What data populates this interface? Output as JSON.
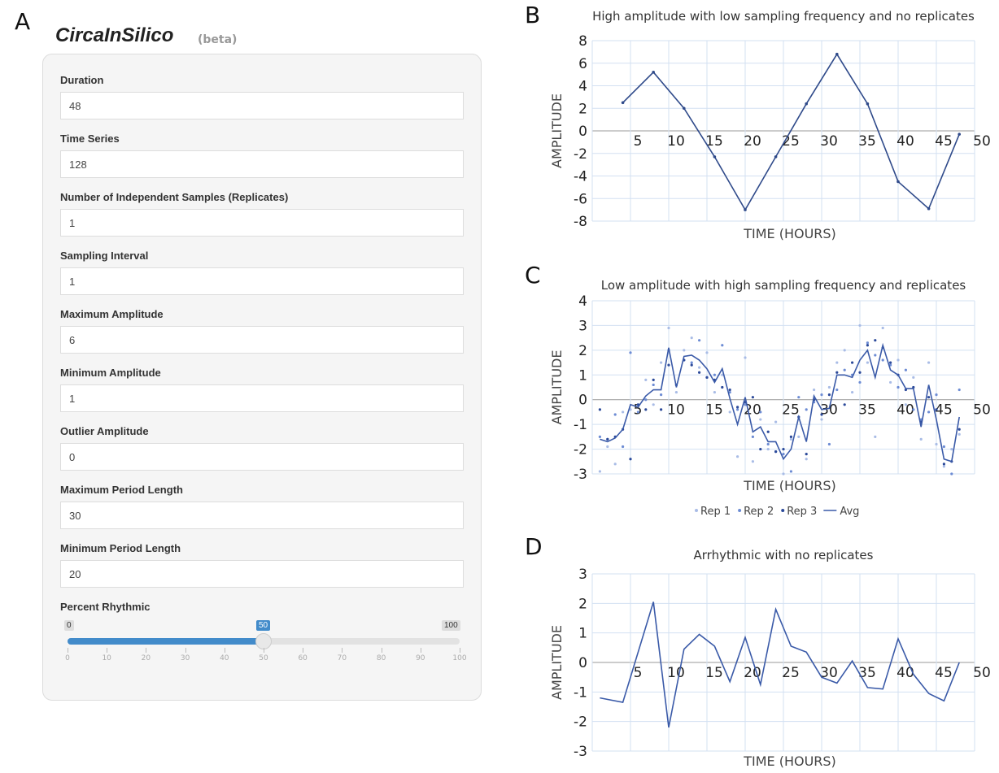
{
  "panel_labels": [
    "A",
    "B",
    "C",
    "D"
  ],
  "form": {
    "title": "CircaInSilico",
    "badge": "(beta)",
    "fields": [
      {
        "label": "Duration",
        "value": "48"
      },
      {
        "label": "Time Series",
        "value": "128"
      },
      {
        "label": "Number of Independent Samples (Replicates)",
        "value": "1"
      },
      {
        "label": "Sampling Interval",
        "value": "1"
      },
      {
        "label": "Maximum Amplitude",
        "value": "6"
      },
      {
        "label": "Minimum Amplitude",
        "value": "1"
      },
      {
        "label": "Outlier Amplitude",
        "value": "0"
      },
      {
        "label": "Maximum Period Length",
        "value": "30"
      },
      {
        "label": "Minimum Period Length",
        "value": "20"
      }
    ],
    "slider": {
      "label": "Percent Rhythmic",
      "min": 0,
      "max": 100,
      "value": 50,
      "ticks": [
        0,
        10,
        20,
        30,
        40,
        50,
        60,
        70,
        80,
        90,
        100
      ]
    }
  },
  "chart_data": [
    {
      "type": "line",
      "title": "High amplitude with low sampling frequency and no replicates",
      "x_label": "TIME (HOURS)",
      "y_label": "AMPLITUDE",
      "x": [
        4,
        8,
        12,
        16,
        20,
        24,
        28,
        32,
        36,
        40,
        44,
        48
      ],
      "series": [
        {
          "name": "Amplitude",
          "color": "#2f4a8a",
          "markers": true,
          "line": true,
          "values": [
            2.5,
            5.2,
            2.0,
            -2.3,
            -7.0,
            -2.3,
            2.4,
            6.8,
            2.4,
            -4.5,
            -6.9,
            -0.3
          ]
        }
      ],
      "xlim": [
        0,
        50
      ],
      "xticks": [
        5,
        10,
        15,
        20,
        25,
        30,
        35,
        40,
        45,
        50
      ],
      "ylim": [
        -8,
        8
      ],
      "yticks": [
        -8,
        -6,
        -4,
        -2,
        0,
        2,
        4,
        6,
        8
      ],
      "grid": true,
      "legend": false
    },
    {
      "type": "line",
      "title": "Low amplitude with high sampling frequency and replicates",
      "x_label": "TIME (HOURS)",
      "y_label": "AMPLITUDE",
      "x": [
        1,
        2,
        3,
        4,
        5,
        6,
        7,
        8,
        9,
        10,
        11,
        12,
        13,
        14,
        15,
        16,
        17,
        18,
        19,
        20,
        21,
        22,
        23,
        24,
        25,
        26,
        27,
        28,
        29,
        30,
        31,
        32,
        33,
        34,
        35,
        36,
        37,
        38,
        39,
        40,
        41,
        42,
        43,
        44,
        45,
        46,
        47,
        48
      ],
      "series": [
        {
          "name": "Rep 1",
          "color": "#a9bce6",
          "markers": true,
          "line": false,
          "values": [
            -2.9,
            -1.9,
            -2.6,
            -0.5,
            -0.4,
            -0.2,
            0.8,
            -0.2,
            1.5,
            2.9,
            0.3,
            2.0,
            2.5,
            1.3,
            1.9,
            0.3,
            1.0,
            -0.5,
            -2.3,
            1.7,
            -2.5,
            -0.8,
            -2.0,
            -0.9,
            -3.0,
            -1.6,
            -1.5,
            -2.4,
            0.4,
            -0.8,
            0.5,
            1.5,
            2.0,
            0.3,
            3.0,
            1.5,
            -1.5,
            2.9,
            0.7,
            1.6,
            -0.2,
            0.9,
            -1.6,
            1.5,
            -1.8,
            -2.7,
            -2.0,
            -1.4
          ]
        },
        {
          "name": "Rep 2",
          "color": "#6d8cd4",
          "markers": true,
          "line": false,
          "values": [
            -1.5,
            -1.6,
            -0.6,
            -1.9,
            1.9,
            -0.5,
            0.0,
            0.6,
            0.2,
            2.0,
            0.6,
            1.6,
            1.5,
            2.4,
            0.9,
            1.0,
            2.2,
            0.3,
            -0.4,
            -0.2,
            -1.5,
            -0.5,
            -1.8,
            -2.1,
            -2.2,
            -2.9,
            0.1,
            -0.4,
            -0.1,
            0.2,
            -1.8,
            0.4,
            1.2,
            1.0,
            0.7,
            2.3,
            1.8,
            1.6,
            1.4,
            0.5,
            1.2,
            -0.4,
            -0.8,
            -0.5,
            0.2,
            -1.9,
            -3.0,
            0.4
          ]
        },
        {
          "name": "Rep 3",
          "color": "#2c4a9a",
          "markers": true,
          "line": false,
          "values": [
            -0.4,
            -1.6,
            -1.5,
            -1.2,
            -2.4,
            -0.2,
            -0.4,
            0.8,
            -0.4,
            1.4,
            0.6,
            1.6,
            1.4,
            1.1,
            0.9,
            0.8,
            0.5,
            0.4,
            -0.3,
            -0.1,
            0.1,
            -2.0,
            -1.3,
            -2.1,
            -2.0,
            -1.5,
            -0.7,
            -2.2,
            0.0,
            -0.6,
            0.2,
            1.1,
            -0.2,
            1.5,
            1.1,
            2.2,
            2.4,
            2.1,
            1.5,
            1.0,
            0.4,
            0.5,
            -0.9,
            0.1,
            -0.4,
            -2.6,
            -2.5,
            -1.2
          ]
        },
        {
          "name": "Avg",
          "color": "#3a5aa8",
          "markers": false,
          "line": true,
          "values": [
            -1.6,
            -1.7,
            -1.55,
            -1.2,
            -0.2,
            -0.3,
            0.15,
            0.4,
            0.4,
            2.1,
            0.5,
            1.75,
            1.8,
            1.6,
            1.25,
            0.7,
            1.25,
            0.05,
            -1.0,
            0.1,
            -1.3,
            -1.1,
            -1.7,
            -1.7,
            -2.4,
            -2.0,
            -0.7,
            -1.7,
            0.15,
            -0.4,
            -0.35,
            1.0,
            1.0,
            0.9,
            1.6,
            2.0,
            0.9,
            2.2,
            1.2,
            1.0,
            0.45,
            0.45,
            -1.1,
            0.6,
            -0.8,
            -2.4,
            -2.5,
            -0.7
          ]
        }
      ],
      "xlim": [
        0,
        50
      ],
      "xticks": [
        5,
        10,
        15,
        20,
        25,
        30,
        35,
        40,
        45,
        50
      ],
      "ylim": [
        -3,
        4
      ],
      "yticks": [
        -3,
        -2,
        -1,
        0,
        1,
        2,
        3,
        4
      ],
      "grid": true,
      "legend": true
    },
    {
      "type": "line",
      "title": "Arrhythmic with no replicates",
      "x_label": "TIME (HOURS)",
      "y_label": "AMPLITUDE",
      "x": [
        1,
        4,
        8,
        10,
        12,
        14,
        16,
        18,
        20,
        22,
        24,
        26,
        28,
        30,
        32,
        34,
        36,
        38,
        40,
        42,
        44,
        46,
        48
      ],
      "series": [
        {
          "name": "Amplitude",
          "color": "#3a5aa8",
          "markers": false,
          "line": true,
          "values": [
            -1.2,
            -1.35,
            2.05,
            -2.2,
            0.45,
            0.95,
            0.55,
            -0.65,
            0.85,
            -0.75,
            1.8,
            0.55,
            0.35,
            -0.5,
            -0.7,
            0.05,
            -0.85,
            -0.9,
            0.8,
            -0.4,
            -1.05,
            -1.3,
            0
          ]
        }
      ],
      "xlim": [
        0,
        50
      ],
      "xticks": [
        5,
        10,
        15,
        20,
        25,
        30,
        35,
        40,
        45,
        50
      ],
      "ylim": [
        -3,
        3
      ],
      "yticks": [
        -3,
        -2,
        -1,
        0,
        1,
        2,
        3
      ],
      "grid": true,
      "legend": false
    }
  ]
}
